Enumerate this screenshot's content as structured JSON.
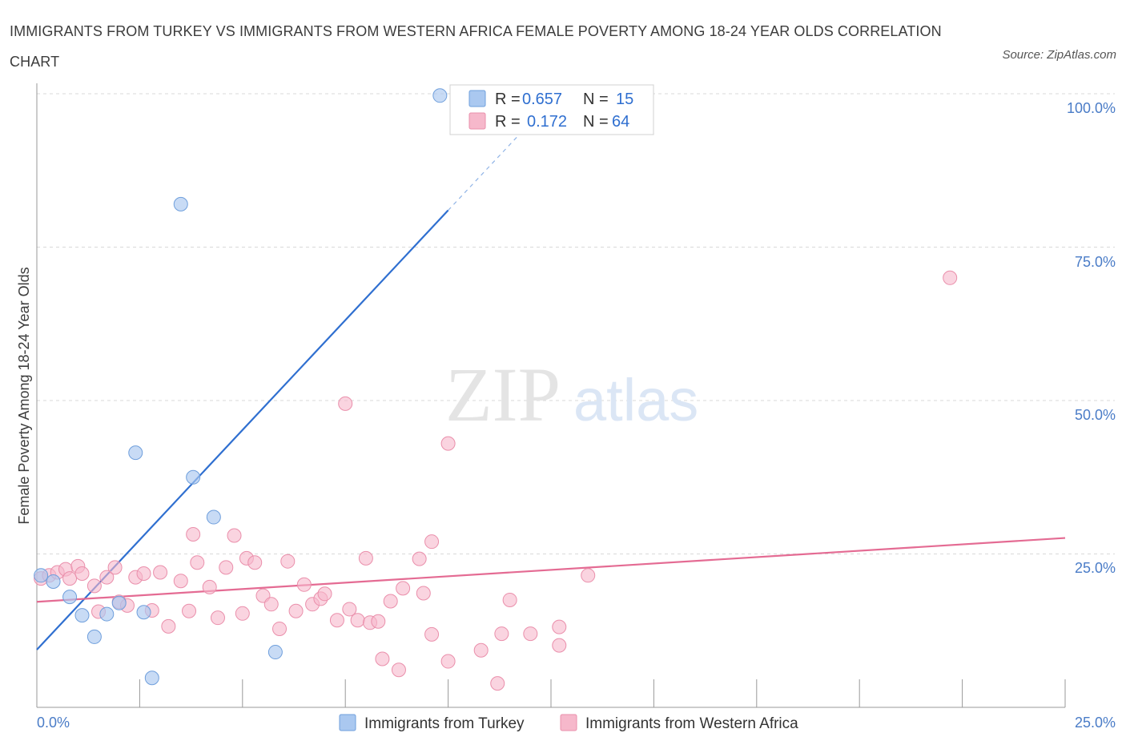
{
  "title": "IMMIGRANTS FROM TURKEY VS IMMIGRANTS FROM WESTERN AFRICA FEMALE POVERTY AMONG 18-24 YEAR OLDS CORRELATION CHART",
  "source": "Source: ZipAtlas.com",
  "watermark": {
    "zip": "ZIP",
    "atlas": "atlas"
  },
  "legend_top": {
    "r_label": "R =",
    "n_label": "N =",
    "rows": [
      {
        "r": "0.657",
        "n": "15",
        "color": "#aac8f0"
      },
      {
        "r": "0.172",
        "n": "64",
        "color": "#f6b8cb"
      }
    ]
  },
  "colors": {
    "turkey_fill": "#aac8f0",
    "turkey_stroke": "#6f9fdc",
    "turkey_line": "#2f6fd0",
    "wafrica_fill": "#f6b8cb",
    "wafrica_stroke": "#ea8fab",
    "wafrica_line": "#e46b93",
    "grid": "#d9d9d9",
    "tick_label": "#4a7cc7"
  },
  "chart_data": {
    "type": "scatter",
    "title": "IMMIGRANTS FROM TURKEY VS IMMIGRANTS FROM WESTERN AFRICA FEMALE POVERTY AMONG 18-24 YEAR OLDS CORRELATION CHART",
    "xlabel": "",
    "ylabel": "Female Poverty Among 18-24 Year Olds",
    "xlim": [
      0,
      25
    ],
    "ylim": [
      0,
      100
    ],
    "x_tick_labels": [
      "0.0%",
      "25.0%"
    ],
    "y_tick_labels": [
      "25.0%",
      "50.0%",
      "75.0%",
      "100.0%"
    ],
    "y_ticks": [
      25,
      50,
      75,
      100
    ],
    "grid": true,
    "legend": "bottom-center",
    "series": [
      {
        "name": "Immigrants from Turkey",
        "R": 0.657,
        "N": 15,
        "trend": {
          "x": [
            0,
            10
          ],
          "y": [
            9.4,
            81
          ],
          "dashed_to": [
            12.8,
            101
          ]
        },
        "points": [
          [
            0.1,
            21.5
          ],
          [
            0.4,
            20.5
          ],
          [
            0.8,
            18.0
          ],
          [
            1.1,
            15.0
          ],
          [
            1.4,
            11.5
          ],
          [
            1.7,
            15.2
          ],
          [
            2.0,
            17.0
          ],
          [
            2.4,
            41.5
          ],
          [
            2.6,
            15.5
          ],
          [
            2.8,
            4.8
          ],
          [
            3.5,
            82.0
          ],
          [
            3.8,
            37.5
          ],
          [
            4.3,
            31.0
          ],
          [
            5.8,
            9.0
          ],
          [
            9.8,
            99.7
          ]
        ]
      },
      {
        "name": "Immigrants from Western Africa",
        "R": 0.172,
        "N": 64,
        "trend": {
          "x": [
            0,
            25
          ],
          "y": [
            17.2,
            27.6
          ]
        },
        "points": [
          [
            0.1,
            21.0
          ],
          [
            0.3,
            21.5
          ],
          [
            0.5,
            22.0
          ],
          [
            0.7,
            22.5
          ],
          [
            0.8,
            21.0
          ],
          [
            1.0,
            23.0
          ],
          [
            1.1,
            21.8
          ],
          [
            1.4,
            19.8
          ],
          [
            1.5,
            15.6
          ],
          [
            1.7,
            21.2
          ],
          [
            1.9,
            22.8
          ],
          [
            2.0,
            17.2
          ],
          [
            2.2,
            16.6
          ],
          [
            2.4,
            21.2
          ],
          [
            2.6,
            21.8
          ],
          [
            2.8,
            15.8
          ],
          [
            3.0,
            22.0
          ],
          [
            3.2,
            13.2
          ],
          [
            3.5,
            20.6
          ],
          [
            3.7,
            15.7
          ],
          [
            3.8,
            28.2
          ],
          [
            3.9,
            23.6
          ],
          [
            4.2,
            19.6
          ],
          [
            4.4,
            14.6
          ],
          [
            4.6,
            22.8
          ],
          [
            4.8,
            28.0
          ],
          [
            5.0,
            15.3
          ],
          [
            5.1,
            24.3
          ],
          [
            5.3,
            23.6
          ],
          [
            5.5,
            18.2
          ],
          [
            5.7,
            16.8
          ],
          [
            5.9,
            12.8
          ],
          [
            6.1,
            23.8
          ],
          [
            6.3,
            15.7
          ],
          [
            6.5,
            20.0
          ],
          [
            6.7,
            16.8
          ],
          [
            6.9,
            17.7
          ],
          [
            7.0,
            18.5
          ],
          [
            7.3,
            14.2
          ],
          [
            7.5,
            49.5
          ],
          [
            7.6,
            16.0
          ],
          [
            7.8,
            14.2
          ],
          [
            8.0,
            24.3
          ],
          [
            8.1,
            13.8
          ],
          [
            8.3,
            14.0
          ],
          [
            8.4,
            7.9
          ],
          [
            8.6,
            17.3
          ],
          [
            8.8,
            6.1
          ],
          [
            8.9,
            19.4
          ],
          [
            9.3,
            24.2
          ],
          [
            9.4,
            18.6
          ],
          [
            9.6,
            11.9
          ],
          [
            9.6,
            27.0
          ],
          [
            10.0,
            7.5
          ],
          [
            10.0,
            43.0
          ],
          [
            10.8,
            9.3
          ],
          [
            11.2,
            3.9
          ],
          [
            11.3,
            12.0
          ],
          [
            11.5,
            17.5
          ],
          [
            12.0,
            12.0
          ],
          [
            12.7,
            13.1
          ],
          [
            12.7,
            10.1
          ],
          [
            13.4,
            21.5
          ],
          [
            22.2,
            70.0
          ]
        ]
      }
    ]
  },
  "bottom_legend": [
    "Immigrants from Turkey",
    "Immigrants from Western Africa"
  ]
}
